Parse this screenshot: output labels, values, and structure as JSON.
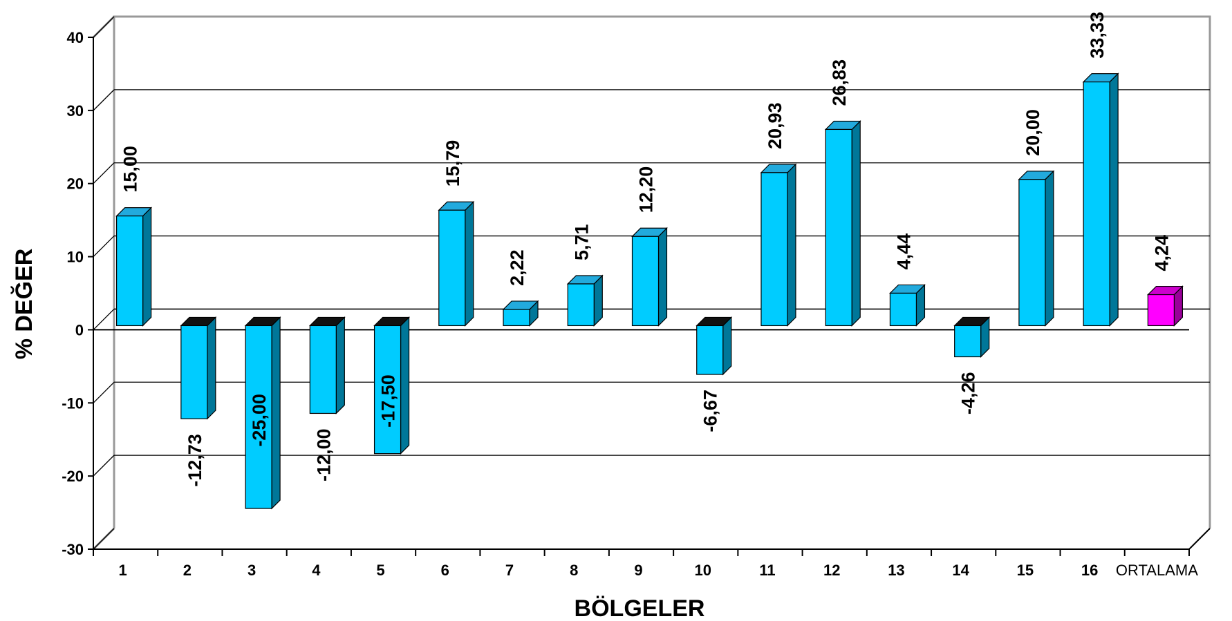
{
  "chart_data": {
    "type": "bar",
    "style": "3d-columns",
    "xlabel": "BÖLGELER",
    "ylabel": "% DEĞER",
    "ylim": [
      -30,
      40
    ],
    "yticks": [
      40,
      30,
      20,
      10,
      0,
      -10,
      -20,
      -30
    ],
    "grid": true,
    "categories": [
      "1",
      "2",
      "3",
      "4",
      "5",
      "6",
      "7",
      "8",
      "9",
      "10",
      "11",
      "12",
      "13",
      "14",
      "15",
      "16",
      "ORTALAMA"
    ],
    "values": [
      15.0,
      -12.73,
      -25.0,
      -12.0,
      -17.5,
      15.79,
      2.22,
      5.71,
      12.2,
      -6.67,
      20.93,
      26.83,
      4.44,
      -4.26,
      20.0,
      33.33,
      4.24
    ],
    "value_labels": [
      "15,00",
      "-12,73",
      "-25,00",
      "-12,00",
      "-17,50",
      "15,79",
      "2,22",
      "5,71",
      "12,20",
      "-6,67",
      "20,93",
      "26,83",
      "4,44",
      "-4,26",
      "20,00",
      "33,33",
      "4,24"
    ],
    "colors": {
      "bar": "#00CCFF",
      "bar_side": "#007799",
      "bar_top": "#22AADD",
      "average_bar": "#FF00FF",
      "average_side": "#990099",
      "average_top": "#CC00CC",
      "negative_top": "#111111",
      "wall": "#999999",
      "grid": "#000000"
    }
  }
}
